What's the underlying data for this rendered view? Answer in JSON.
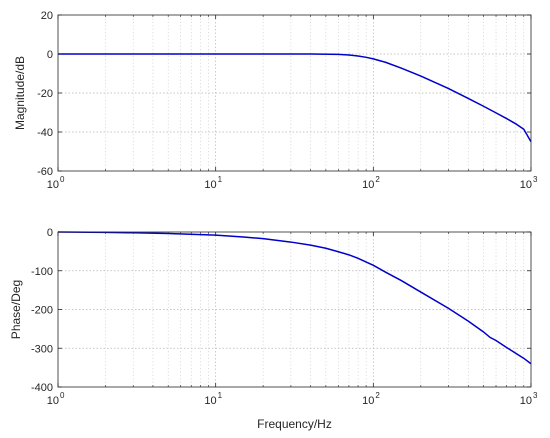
{
  "chart_data": [
    {
      "type": "line",
      "title": "",
      "xlabel": "",
      "ylabel": "Magnitude/dB",
      "x_scale": "log",
      "xlim": [
        1,
        1000
      ],
      "ylim": [
        -60,
        20
      ],
      "x_ticks": [
        1,
        10,
        100,
        1000
      ],
      "x_tick_labels": [
        {
          "base": "10",
          "exp": "0"
        },
        {
          "base": "10",
          "exp": "1"
        },
        {
          "base": "10",
          "exp": "2"
        },
        {
          "base": "10",
          "exp": "3"
        }
      ],
      "y_ticks": [
        20,
        0,
        -20,
        -40,
        -60
      ],
      "y_tick_labels": [
        "20",
        "0",
        "-20",
        "-40",
        "-60"
      ],
      "grid": {
        "x": true,
        "y": true,
        "x_minor": true
      },
      "line_color": "#0000cc",
      "series": [
        {
          "x": [
            1,
            2,
            5,
            10,
            20,
            40,
            60,
            70,
            80,
            90,
            100,
            120,
            150,
            200,
            300,
            400,
            500,
            600,
            700,
            800,
            900,
            1000
          ],
          "values": [
            0,
            0,
            0,
            0,
            0,
            0,
            -0.2,
            -0.5,
            -1,
            -1.7,
            -2.5,
            -4.3,
            -7.2,
            -11.3,
            -17.7,
            -22.8,
            -26.8,
            -30.2,
            -33.1,
            -35.8,
            -38.6,
            -45
          ]
        }
      ]
    },
    {
      "type": "line",
      "title": "",
      "xlabel": "Frequency/Hz",
      "ylabel": "Phase/Deg",
      "x_scale": "log",
      "xlim": [
        1,
        1000
      ],
      "ylim": [
        -400,
        0
      ],
      "x_ticks": [
        1,
        10,
        100,
        1000
      ],
      "x_tick_labels": [
        {
          "base": "10",
          "exp": "0"
        },
        {
          "base": "10",
          "exp": "1"
        },
        {
          "base": "10",
          "exp": "2"
        },
        {
          "base": "10",
          "exp": "3"
        }
      ],
      "y_ticks": [
        0,
        -100,
        -200,
        -300,
        -400
      ],
      "y_tick_labels": [
        "0",
        "-100",
        "-200",
        "-300",
        "-400"
      ],
      "grid": {
        "x": true,
        "y": true,
        "x_minor": true
      },
      "line_color": "#0000cc",
      "series": [
        {
          "x": [
            1,
            2,
            3,
            5,
            10,
            15,
            20,
            30,
            40,
            50,
            60,
            70,
            80,
            100,
            120,
            150,
            200,
            300,
            400,
            500,
            550,
            600,
            700,
            800,
            900,
            1000
          ],
          "values": [
            0,
            -1,
            -2,
            -4,
            -8,
            -13,
            -17,
            -26,
            -34,
            -42,
            -51,
            -59,
            -68,
            -86,
            -104,
            -125,
            -155,
            -197,
            -230,
            -258,
            -272,
            -280,
            -298,
            -313,
            -326,
            -340
          ]
        }
      ]
    }
  ]
}
